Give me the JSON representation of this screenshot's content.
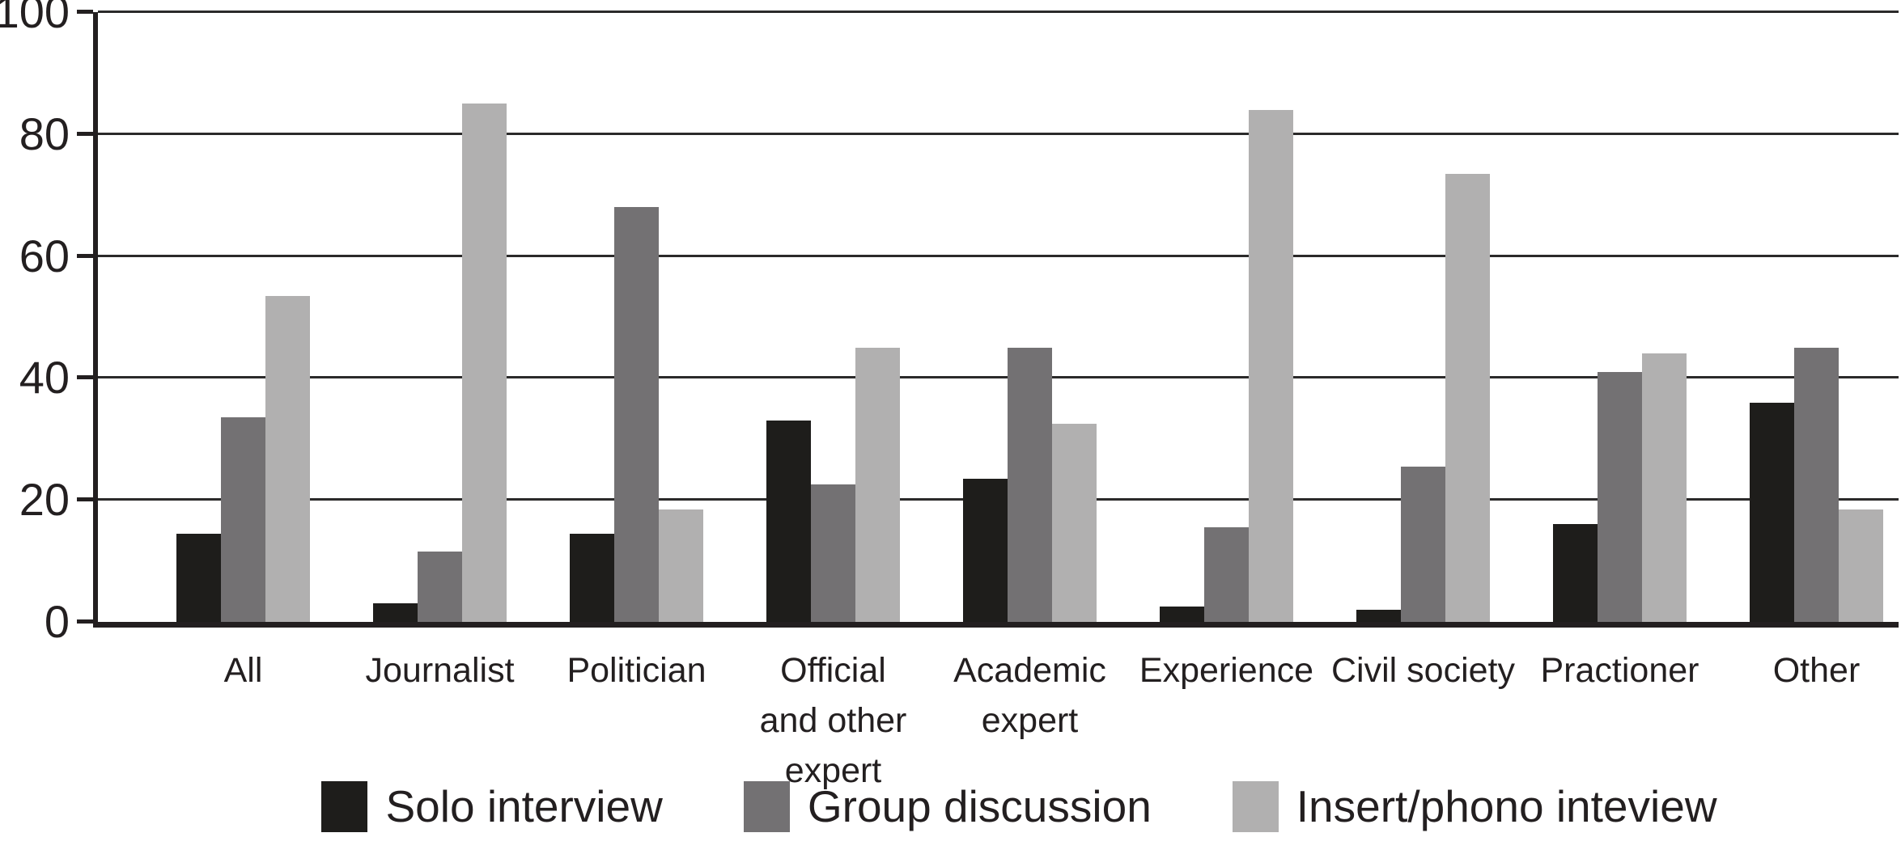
{
  "chart_data": {
    "type": "bar",
    "title": "",
    "xlabel": "",
    "ylabel": "",
    "categories": [
      "All",
      "Journalist",
      "Politician",
      "Official and other expert",
      "Academic expert",
      "Experience",
      "Civil society",
      "Practioner",
      "Other"
    ],
    "category_lines": [
      [
        "All"
      ],
      [
        "Journalist"
      ],
      [
        "Politician"
      ],
      [
        "Official",
        "and other",
        "expert"
      ],
      [
        "Academic",
        "expert"
      ],
      [
        "Experience"
      ],
      [
        "Civil society"
      ],
      [
        "Practioner"
      ],
      [
        "Other"
      ]
    ],
    "series": [
      {
        "name": "Solo interview",
        "color": "#1e1d1b",
        "values": [
          14.5,
          3,
          14.5,
          33,
          23.5,
          2.5,
          2,
          16,
          36
        ]
      },
      {
        "name": "Group discussion",
        "color": "#737173",
        "values": [
          33.5,
          11.5,
          68,
          22.5,
          45,
          15.5,
          25.5,
          41,
          45
        ]
      },
      {
        "name": "Insert/phono inteview",
        "color": "#b1b0b0",
        "values": [
          53.5,
          85,
          18.5,
          45,
          32.5,
          84,
          73.5,
          44,
          18.5
        ]
      }
    ],
    "ylim": [
      0,
      100
    ],
    "yticks": [
      0,
      20,
      40,
      60,
      80,
      100
    ],
    "grid": true,
    "legend_position": "bottom",
    "axis_color": "#231f20"
  }
}
